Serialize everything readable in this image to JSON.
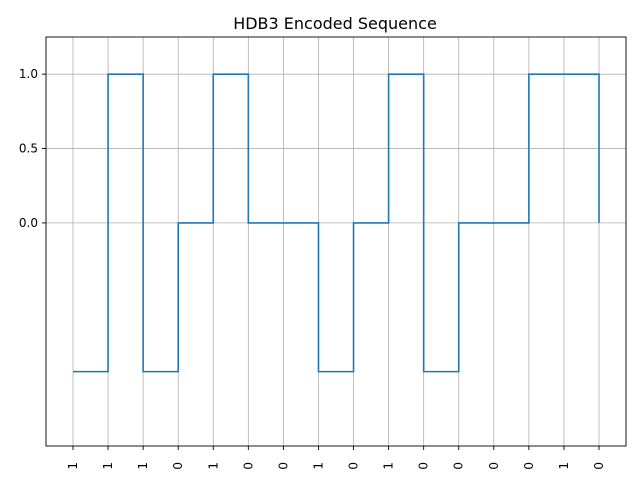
{
  "chart_data": {
    "type": "line",
    "title": "HDB3 Encoded Sequence",
    "xlabel": "",
    "ylabel": "",
    "x_tick_labels": [
      "1",
      "1",
      "1",
      "0",
      "1",
      "0",
      "0",
      "1",
      "0",
      "1",
      "0",
      "0",
      "0",
      "0",
      "1",
      "0"
    ],
    "y_ticks": [
      0.0,
      0.5,
      1.0
    ],
    "y_tick_labels": [
      "0.0",
      "0.5",
      "1.0"
    ],
    "ylim": [
      -1.5,
      1.25
    ],
    "grid": true,
    "step_mode": "post",
    "series": [
      {
        "values": [
          -1,
          1,
          -1,
          0,
          1,
          0,
          0,
          -1,
          0,
          1,
          -1,
          0,
          0,
          1,
          1,
          0
        ],
        "color": "#1f77b4"
      }
    ]
  }
}
